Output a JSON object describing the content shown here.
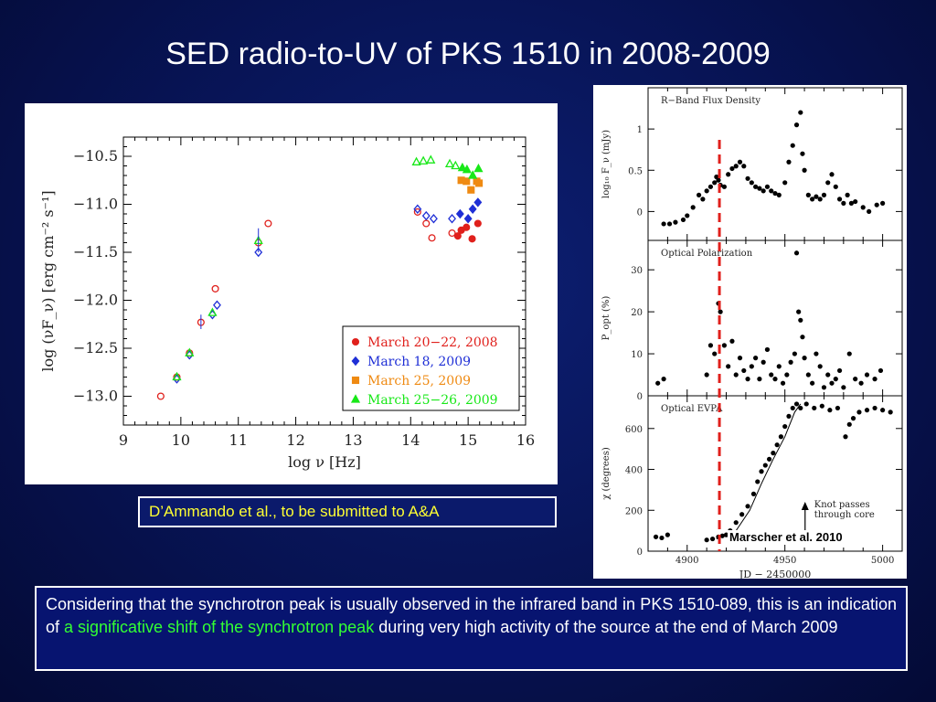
{
  "slide": {
    "title": "SED radio-to-UV of PKS 1510 in 2008-2009",
    "caption": "D’Ammando et al., to be submitted to A&A",
    "credit": "Marscher et al. 2010",
    "note_before": "Considering that the synchrotron peak is usually observed in the infrared band in PKS 1510-089, this is an indication of ",
    "note_highlight": "a significative shift of the synchrotron peak",
    "note_after": " during very high activity of the source at the end of March 2009",
    "colors": {
      "highlight": "#33ff33",
      "caption_text": "#ffff33"
    }
  },
  "chart_data": [
    {
      "type": "scatter",
      "xlabel": "log  ν  [Hz]",
      "ylabel": "log  (νF_ν)  [erg cm⁻² s⁻¹]",
      "xlim": [
        9,
        16
      ],
      "ylim": [
        -13.3,
        -10.3
      ],
      "xticks": [
        9,
        10,
        11,
        12,
        13,
        14,
        15,
        16
      ],
      "yticks": [
        -10.5,
        -11.0,
        -11.5,
        -12.0,
        -12.5,
        -13.0
      ],
      "ytick_labels": [
        "−10.5",
        "−11.0",
        "−11.5",
        "−12.0",
        "−12.5",
        "−13.0"
      ],
      "legend_position": "bottom-right",
      "series": [
        {
          "name": "March 20−22, 2008",
          "color": "#e0201c",
          "marker": "circle",
          "open": [
            [
              9.65,
              -13.0
            ],
            [
              9.93,
              -12.8
            ],
            [
              10.15,
              -12.55
            ],
            [
              10.35,
              -12.23
            ],
            [
              10.6,
              -11.88
            ],
            [
              11.35,
              -11.4
            ],
            [
              11.52,
              -11.2
            ],
            [
              14.12,
              -11.08
            ],
            [
              14.27,
              -11.2
            ],
            [
              14.37,
              -11.35
            ],
            [
              14.72,
              -11.3
            ]
          ],
          "filled": [
            [
              14.82,
              -11.33
            ],
            [
              14.88,
              -11.27
            ],
            [
              14.97,
              -11.24
            ],
            [
              15.07,
              -11.36
            ],
            [
              15.17,
              -11.2
            ]
          ]
        },
        {
          "name": "March 18, 2009",
          "color": "#1f2fd6",
          "marker": "diamond",
          "open": [
            [
              9.93,
              -12.82
            ],
            [
              10.15,
              -12.57
            ],
            [
              10.55,
              -12.15
            ],
            [
              10.63,
              -12.05
            ],
            [
              11.35,
              -11.5
            ],
            [
              14.12,
              -11.05
            ],
            [
              14.27,
              -11.12
            ],
            [
              14.4,
              -11.15
            ],
            [
              14.72,
              -11.15
            ]
          ],
          "filled": [
            [
              14.86,
              -11.1
            ],
            [
              15.0,
              -11.15
            ],
            [
              15.08,
              -11.05
            ],
            [
              15.17,
              -10.98
            ]
          ]
        },
        {
          "name": "March 25, 2009",
          "color": "#ef8a12",
          "marker": "square",
          "open": [],
          "filled": [
            [
              14.88,
              -10.75
            ],
            [
              14.97,
              -10.76
            ],
            [
              15.05,
              -10.85
            ],
            [
              15.15,
              -10.76
            ],
            [
              15.19,
              -10.78
            ]
          ]
        },
        {
          "name": "March 25−26, 2009",
          "color": "#18e818",
          "marker": "triangle",
          "open": [
            [
              9.93,
              -12.8
            ],
            [
              10.15,
              -12.55
            ],
            [
              10.55,
              -12.13
            ],
            [
              11.35,
              -11.38
            ],
            [
              14.1,
              -10.56
            ],
            [
              14.22,
              -10.55
            ],
            [
              14.35,
              -10.54
            ],
            [
              14.68,
              -10.58
            ],
            [
              14.78,
              -10.6
            ]
          ],
          "filled": [
            [
              14.9,
              -10.62
            ],
            [
              14.98,
              -10.64
            ],
            [
              15.08,
              -10.7
            ],
            [
              15.18,
              -10.63
            ]
          ]
        }
      ]
    },
    {
      "type": "scatter",
      "panel_title": "R−Band Flux Density",
      "ylabel": "log₁₀ F_ν (mJy)",
      "xlim": [
        4880,
        5010
      ],
      "ylim": [
        -0.35,
        1.5
      ],
      "yticks": [
        0,
        0.5,
        1
      ],
      "ytick_labels": [
        "0",
        "0.5",
        "1"
      ],
      "marker_line_jd": 4916.5,
      "points": [
        [
          4888,
          -0.15
        ],
        [
          4891,
          -0.15
        ],
        [
          4894,
          -0.13
        ],
        [
          4898,
          -0.1
        ],
        [
          4900,
          -0.05
        ],
        [
          4903,
          0.05
        ],
        [
          4906,
          0.2
        ],
        [
          4908,
          0.15
        ],
        [
          4910,
          0.25
        ],
        [
          4912,
          0.3
        ],
        [
          4914,
          0.35
        ],
        [
          4915,
          0.42
        ],
        [
          4916,
          0.38
        ],
        [
          4917,
          0.32
        ],
        [
          4919,
          0.3
        ],
        [
          4921,
          0.45
        ],
        [
          4923,
          0.52
        ],
        [
          4925,
          0.55
        ],
        [
          4927,
          0.6
        ],
        [
          4929,
          0.55
        ],
        [
          4931,
          0.4
        ],
        [
          4933,
          0.35
        ],
        [
          4935,
          0.3
        ],
        [
          4937,
          0.28
        ],
        [
          4939,
          0.25
        ],
        [
          4941,
          0.3
        ],
        [
          4943,
          0.25
        ],
        [
          4945,
          0.22
        ],
        [
          4947,
          0.2
        ],
        [
          4950,
          0.35
        ],
        [
          4952,
          0.6
        ],
        [
          4954,
          0.8
        ],
        [
          4956,
          1.05
        ],
        [
          4958,
          1.2
        ],
        [
          4959,
          0.7
        ],
        [
          4960,
          0.5
        ],
        [
          4962,
          0.2
        ],
        [
          4964,
          0.15
        ],
        [
          4966,
          0.18
        ],
        [
          4968,
          0.15
        ],
        [
          4970,
          0.2
        ],
        [
          4972,
          0.35
        ],
        [
          4974,
          0.45
        ],
        [
          4976,
          0.3
        ],
        [
          4978,
          0.15
        ],
        [
          4980,
          0.1
        ],
        [
          4982,
          0.2
        ],
        [
          4984,
          0.1
        ],
        [
          4986,
          0.12
        ],
        [
          4990,
          0.05
        ],
        [
          4993,
          0.0
        ],
        [
          4997,
          0.08
        ],
        [
          5000,
          0.1
        ]
      ]
    },
    {
      "type": "scatter",
      "panel_title": "Optical Polarization",
      "ylabel": "P_opt (%)",
      "xlim": [
        4880,
        5010
      ],
      "ylim": [
        0,
        37
      ],
      "yticks": [
        0,
        10,
        20,
        30
      ],
      "ytick_labels": [
        "0",
        "10",
        "20",
        "30"
      ],
      "marker_line_jd": 4916.5,
      "points": [
        [
          4885,
          3
        ],
        [
          4888,
          4
        ],
        [
          4910,
          5
        ],
        [
          4912,
          12
        ],
        [
          4914,
          10
        ],
        [
          4916,
          22
        ],
        [
          4917,
          20
        ],
        [
          4919,
          12
        ],
        [
          4921,
          7
        ],
        [
          4923,
          13
        ],
        [
          4925,
          5
        ],
        [
          4927,
          9
        ],
        [
          4929,
          6
        ],
        [
          4931,
          4
        ],
        [
          4933,
          7
        ],
        [
          4935,
          9
        ],
        [
          4937,
          4
        ],
        [
          4939,
          8
        ],
        [
          4941,
          11
        ],
        [
          4943,
          5
        ],
        [
          4945,
          4
        ],
        [
          4947,
          7
        ],
        [
          4949,
          3
        ],
        [
          4951,
          5
        ],
        [
          4953,
          8
        ],
        [
          4955,
          10
        ],
        [
          4956,
          34
        ],
        [
          4957,
          20
        ],
        [
          4958,
          18
        ],
        [
          4959,
          14
        ],
        [
          4960,
          9
        ],
        [
          4962,
          5
        ],
        [
          4964,
          3
        ],
        [
          4966,
          10
        ],
        [
          4968,
          7
        ],
        [
          4970,
          2
        ],
        [
          4972,
          5
        ],
        [
          4974,
          3
        ],
        [
          4976,
          4
        ],
        [
          4978,
          6
        ],
        [
          4980,
          2
        ],
        [
          4983,
          10
        ],
        [
          4986,
          4
        ],
        [
          4989,
          3
        ],
        [
          4992,
          5
        ],
        [
          4996,
          4
        ],
        [
          4999,
          6
        ]
      ]
    },
    {
      "type": "scatter",
      "panel_title": "Optical EVPA",
      "ylabel": "χ (degrees)",
      "xlabel": "JD − 2450000",
      "xlim": [
        4880,
        5010
      ],
      "ylim": [
        0,
        760
      ],
      "xticks": [
        4900,
        4950,
        5000
      ],
      "yticks": [
        0,
        200,
        400,
        600
      ],
      "ytick_labels": [
        "0",
        "200",
        "400",
        "600"
      ],
      "marker_line_jd": 4916.5,
      "annotation": "Knot passes\nthrough core",
      "points": [
        [
          4884,
          70
        ],
        [
          4887,
          65
        ],
        [
          4890,
          80
        ],
        [
          4910,
          55
        ],
        [
          4913,
          60
        ],
        [
          4916,
          70
        ],
        [
          4918,
          75
        ],
        [
          4920,
          80
        ],
        [
          4922,
          100
        ],
        [
          4925,
          140
        ],
        [
          4928,
          180
        ],
        [
          4931,
          220
        ],
        [
          4934,
          280
        ],
        [
          4936,
          340
        ],
        [
          4938,
          390
        ],
        [
          4940,
          420
        ],
        [
          4942,
          450
        ],
        [
          4944,
          480
        ],
        [
          4946,
          520
        ],
        [
          4948,
          560
        ],
        [
          4950,
          610
        ],
        [
          4952,
          660
        ],
        [
          4954,
          700
        ],
        [
          4956,
          720
        ],
        [
          4958,
          700
        ],
        [
          4961,
          720
        ],
        [
          4965,
          700
        ],
        [
          4969,
          710
        ],
        [
          4973,
          690
        ],
        [
          4977,
          700
        ],
        [
          4981,
          560
        ],
        [
          4983,
          620
        ],
        [
          4985,
          650
        ],
        [
          4988,
          680
        ],
        [
          4992,
          690
        ],
        [
          4996,
          700
        ],
        [
          5000,
          690
        ],
        [
          5004,
          680
        ]
      ],
      "model_curve": [
        [
          4915,
          60
        ],
        [
          4925,
          100
        ],
        [
          4932,
          200
        ],
        [
          4938,
          330
        ],
        [
          4944,
          450
        ],
        [
          4950,
          560
        ],
        [
          4955,
          680
        ],
        [
          4958,
          720
        ]
      ]
    }
  ]
}
